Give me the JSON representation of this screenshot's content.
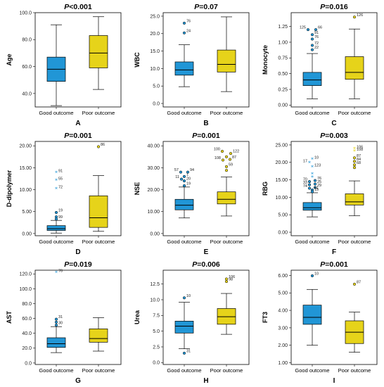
{
  "colors": {
    "good": "#2196d6",
    "poor": "#e6d31a",
    "box_stroke": "#000000"
  },
  "chart_data": [
    {
      "id": "A",
      "type": "box",
      "title": "P<0.001",
      "ylabel": "Age",
      "letter": "A",
      "categories": [
        "Good outcome",
        "Poor outcome"
      ],
      "ylim": [
        30,
        100
      ],
      "yticks": [
        {
          "v": 40,
          "t": "40.0"
        },
        {
          "v": 60,
          "t": "60.0"
        },
        {
          "v": 80,
          "t": "80.0"
        },
        {
          "v": 100,
          "t": "100.0"
        }
      ],
      "boxes": [
        {
          "min": 31,
          "q1": 49,
          "median": 58,
          "q3": 67,
          "max": 91,
          "outliers": []
        },
        {
          "min": 43,
          "q1": 59,
          "median": 70,
          "q3": 83,
          "max": 97,
          "outliers": []
        }
      ]
    },
    {
      "id": "B",
      "type": "box",
      "title": "P=0.07",
      "ylabel": "WBC",
      "letter": "B",
      "categories": [
        "Good outcome",
        "Poor outcome"
      ],
      "ylim": [
        -1,
        26
      ],
      "yticks": [
        {
          "v": 0,
          "t": "0.0"
        },
        {
          "v": 5,
          "t": "5.0"
        },
        {
          "v": 10,
          "t": "10.0"
        },
        {
          "v": 15,
          "t": "15.0"
        },
        {
          "v": 20,
          "t": "20.0"
        },
        {
          "v": 25,
          "t": "25.0"
        }
      ],
      "boxes": [
        {
          "min": 4.8,
          "q1": 8.1,
          "median": 9.6,
          "q3": 11.9,
          "max": 16.8,
          "outliers": [
            {
              "v": 23,
              "label": "76",
              "kind": "circle"
            },
            {
              "v": 20.2,
              "label": "24",
              "kind": "circle"
            }
          ]
        },
        {
          "min": 3.4,
          "q1": 9,
          "median": 11.2,
          "q3": 15.3,
          "max": 24.8,
          "outliers": []
        }
      ]
    },
    {
      "id": "C",
      "type": "box",
      "title": "P=0.016",
      "ylabel": "Monocyte",
      "letter": "C",
      "categories": [
        "Good outcome",
        "Poor outcome"
      ],
      "ylim": [
        -0.03,
        1.47
      ],
      "yticks": [
        {
          "v": 0,
          "t": "0.00"
        },
        {
          "v": 0.25,
          "t": "0.25"
        },
        {
          "v": 0.5,
          "t": "0.50"
        },
        {
          "v": 0.75,
          "t": "0.75"
        },
        {
          "v": 1.0,
          "t": "1.00"
        },
        {
          "v": 1.25,
          "t": "1.25"
        }
      ],
      "boxes": [
        {
          "min": 0.1,
          "q1": 0.31,
          "median": 0.4,
          "q3": 0.52,
          "max": 0.82,
          "outliers": [
            {
              "v": 1.2,
              "label": "125",
              "kind": "circle",
              "dx": -6
            },
            {
              "v": 1.2,
              "label": "66",
              "kind": "circle",
              "dx": 5
            },
            {
              "v": 1.12,
              "label": "91",
              "kind": "circle"
            },
            {
              "v": 1.05,
              "label": "76",
              "kind": "circle"
            },
            {
              "v": 0.95,
              "label": "72",
              "kind": "circle"
            },
            {
              "v": 0.88,
              "label": "22",
              "kind": "circle"
            }
          ]
        },
        {
          "min": 0.1,
          "q1": 0.41,
          "median": 0.52,
          "q3": 0.77,
          "max": 1.21,
          "outliers": [
            {
              "v": 1.4,
              "label": "126",
              "kind": "circle"
            }
          ]
        }
      ]
    },
    {
      "id": "D",
      "type": "box",
      "title": "P=0.001",
      "ylabel": "D-dipolymer",
      "letter": "D",
      "categories": [
        "Good outcome",
        "Poor outcome"
      ],
      "ylim": [
        -0.5,
        21
      ],
      "yticks": [
        {
          "v": 0,
          "t": "0.00"
        },
        {
          "v": 5,
          "t": "5.00"
        },
        {
          "v": 10,
          "t": "10.00"
        },
        {
          "v": 15,
          "t": "15.00"
        },
        {
          "v": 20,
          "t": "20.00"
        }
      ],
      "boxes": [
        {
          "min": 0.1,
          "q1": 0.7,
          "median": 1.1,
          "q3": 1.8,
          "max": 3,
          "outliers": [
            {
              "v": 13.8,
              "label": "91",
              "kind": "star"
            },
            {
              "v": 12,
              "label": "55",
              "kind": "star"
            },
            {
              "v": 10.1,
              "label": "72",
              "kind": "star"
            },
            {
              "v": 4.8,
              "label": "19",
              "kind": "circle"
            },
            {
              "v": 3.8,
              "label": "",
              "kind": "circle"
            },
            {
              "v": 3.3,
              "label": "99",
              "kind": "circle"
            }
          ]
        },
        {
          "min": 0.5,
          "q1": 1.4,
          "median": 3.6,
          "q3": 8.6,
          "max": 13.2,
          "outliers": [
            {
              "v": 19.8,
              "label": "86",
              "kind": "circle"
            }
          ]
        }
      ]
    },
    {
      "id": "E",
      "type": "box",
      "title": "P=0.001",
      "ylabel": "NSE",
      "letter": "E",
      "categories": [
        "Good outcome",
        "Poor outcome"
      ],
      "ylim": [
        -1,
        42
      ],
      "yticks": [
        {
          "v": 0,
          "t": "0.00"
        },
        {
          "v": 10,
          "t": "10.00"
        },
        {
          "v": 20,
          "t": "20.00"
        },
        {
          "v": 30,
          "t": "30.00"
        },
        {
          "v": 40,
          "t": "40.00"
        }
      ],
      "boxes": [
        {
          "min": 7.1,
          "q1": 10.8,
          "median": 12.9,
          "q3": 15.6,
          "max": 21.2,
          "outliers": [
            {
              "v": 28,
              "label": "57",
              "kind": "circle",
              "dx": -5
            },
            {
              "v": 28,
              "label": "94",
              "kind": "circle",
              "dx": 5
            },
            {
              "v": 26,
              "label": "1",
              "kind": "circle"
            },
            {
              "v": 24.8,
              "label": "11",
              "kind": "circle",
              "dx": -4
            },
            {
              "v": 24,
              "label": "20",
              "kind": "circle"
            },
            {
              "v": 21.8,
              "label": "19",
              "kind": "circle"
            }
          ]
        },
        {
          "min": 8,
          "q1": 13.5,
          "median": 15.6,
          "q3": 19,
          "max": 25.8,
          "outliers": [
            {
              "v": 37.5,
              "label": "100",
              "kind": "circle",
              "dx": -6
            },
            {
              "v": 36.5,
              "label": "122",
              "kind": "circle",
              "dx": 6
            },
            {
              "v": 35,
              "label": "",
              "kind": "circle"
            },
            {
              "v": 33.5,
              "label": "108",
              "kind": "circle",
              "dx": -5
            },
            {
              "v": 33.8,
              "label": "87",
              "kind": "circle",
              "dx": 5
            },
            {
              "v": 30.5,
              "label": "59",
              "kind": "circle"
            },
            {
              "v": 28.8,
              "label": "",
              "kind": "circle"
            }
          ]
        }
      ]
    },
    {
      "id": "F",
      "type": "box",
      "title": "P=0.003",
      "ylabel": "RBG",
      "letter": "F",
      "categories": [
        "Good outcome",
        "Poor outcome"
      ],
      "ylim": [
        -1,
        26
      ],
      "yticks": [
        {
          "v": 0,
          "t": "0.00"
        },
        {
          "v": 5,
          "t": "5.00"
        },
        {
          "v": 10,
          "t": "10.00"
        },
        {
          "v": 15,
          "t": "15.00"
        },
        {
          "v": 20,
          "t": "20.00"
        },
        {
          "v": 25,
          "t": "25.00"
        }
      ],
      "boxes": [
        {
          "min": 4.4,
          "q1": 6.3,
          "median": 7,
          "q3": 8.5,
          "max": 11.3,
          "outliers": [
            {
              "v": 20.8,
              "label": "10",
              "kind": "star"
            },
            {
              "v": 19.8,
              "label": "17",
              "kind": "star",
              "dx": -4
            },
            {
              "v": 18.5,
              "label": "123",
              "kind": "star"
            },
            {
              "v": 16.5,
              "label": "",
              "kind": "star"
            },
            {
              "v": 15.6,
              "label": "",
              "kind": "star"
            },
            {
              "v": 14.5,
              "label": "70",
              "kind": "circle",
              "dx": -4
            },
            {
              "v": 14.8,
              "label": "76",
              "kind": "circle",
              "dx": 4
            },
            {
              "v": 13.6,
              "label": "33",
              "kind": "circle",
              "dx": -4
            },
            {
              "v": 13.8,
              "label": "25",
              "kind": "circle",
              "dx": 4
            },
            {
              "v": 12.6,
              "label": "74",
              "kind": "circle",
              "dx": -4
            },
            {
              "v": 12.8,
              "label": "29",
              "kind": "circle",
              "dx": 4
            },
            {
              "v": 12.1,
              "label": "61",
              "kind": "circle"
            },
            {
              "v": 11.6,
              "label": "15",
              "kind": "circle"
            }
          ]
        },
        {
          "min": 4.7,
          "q1": 7.8,
          "median": 8.7,
          "q3": 11,
          "max": 14.7,
          "outliers": [
            {
              "v": 23.8,
              "label": "106",
              "kind": "star"
            },
            {
              "v": 23.1,
              "label": "108",
              "kind": "star"
            },
            {
              "v": 21.3,
              "label": "87",
              "kind": "circle"
            },
            {
              "v": 20.3,
              "label": "84",
              "kind": "circle"
            },
            {
              "v": 19.3,
              "label": "68",
              "kind": "circle"
            },
            {
              "v": 18.5,
              "label": "",
              "kind": "circle"
            }
          ]
        }
      ]
    },
    {
      "id": "G",
      "type": "box",
      "title": "P=0.019",
      "ylabel": "AST",
      "letter": "G",
      "categories": [
        "Good outcome",
        "Poor outcome"
      ],
      "ylim": [
        -2,
        125
      ],
      "yticks": [
        {
          "v": 0,
          "t": "0.0"
        },
        {
          "v": 20,
          "t": "20.0"
        },
        {
          "v": 40,
          "t": "40.0"
        },
        {
          "v": 60,
          "t": "60.0"
        },
        {
          "v": 80,
          "t": "80.0"
        },
        {
          "v": 100,
          "t": "100.0"
        },
        {
          "v": 120,
          "t": "120.0"
        }
      ],
      "boxes": [
        {
          "min": 14,
          "q1": 21,
          "median": 26,
          "q3": 34,
          "max": 49,
          "outliers": [
            {
              "v": 121,
              "label": "76",
              "kind": "star"
            },
            {
              "v": 59,
              "label": "31",
              "kind": "circle"
            },
            {
              "v": 55,
              "label": "",
              "kind": "circle"
            },
            {
              "v": 51,
              "label": "30",
              "kind": "circle"
            }
          ]
        },
        {
          "min": 16,
          "q1": 28,
          "median": 33,
          "q3": 46,
          "max": 61,
          "outliers": []
        }
      ]
    },
    {
      "id": "H",
      "type": "box",
      "title": "P=0.006",
      "ylabel": "Urea",
      "letter": "H",
      "categories": [
        "Good outcome",
        "Poor outcome"
      ],
      "ylim": [
        -0.3,
        14.7
      ],
      "yticks": [
        {
          "v": 0,
          "t": "0.0"
        },
        {
          "v": 2.5,
          "t": "2.5"
        },
        {
          "v": 5,
          "t": "5.0"
        },
        {
          "v": 7.5,
          "t": "7.5"
        },
        {
          "v": 10,
          "t": "10.0"
        },
        {
          "v": 12.5,
          "t": "12.5"
        }
      ],
      "boxes": [
        {
          "min": 2.2,
          "q1": 4.7,
          "median": 5.8,
          "q3": 6.6,
          "max": 9.6,
          "outliers": [
            {
              "v": 10.3,
              "label": "10",
              "kind": "circle"
            },
            {
              "v": 1.5,
              "label": "31",
              "kind": "circle"
            }
          ]
        },
        {
          "min": 4.5,
          "q1": 6.1,
          "median": 7.3,
          "q3": 8.6,
          "max": 11,
          "outliers": [
            {
              "v": 13.3,
              "label": "106",
              "kind": "circle"
            },
            {
              "v": 12.9,
              "label": "98",
              "kind": "circle"
            }
          ]
        }
      ]
    },
    {
      "id": "I",
      "type": "box",
      "title": "P=0.001",
      "ylabel": "FT3",
      "letter": "I",
      "categories": [
        "Good outcome",
        "Poor outcome"
      ],
      "ylim": [
        0.9,
        6.3
      ],
      "yticks": [
        {
          "v": 1,
          "t": "1.00"
        },
        {
          "v": 2,
          "t": "2.00"
        },
        {
          "v": 3,
          "t": "3.00"
        },
        {
          "v": 4,
          "t": "4.00"
        },
        {
          "v": 5,
          "t": "5.00"
        },
        {
          "v": 6,
          "t": "6.00"
        }
      ],
      "boxes": [
        {
          "min": 2,
          "q1": 3.2,
          "median": 3.6,
          "q3": 4.3,
          "max": 5.2,
          "outliers": [
            {
              "v": 5.98,
              "label": "10",
              "kind": "circle"
            }
          ]
        },
        {
          "min": 1.6,
          "q1": 2.1,
          "median": 2.75,
          "q3": 3.4,
          "max": 3.9,
          "outliers": [
            {
              "v": 5.5,
              "label": "87",
              "kind": "circle"
            }
          ]
        }
      ]
    }
  ]
}
